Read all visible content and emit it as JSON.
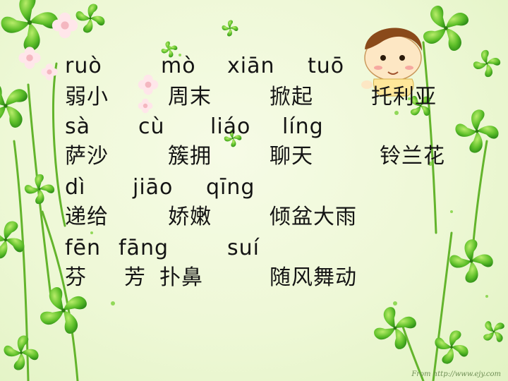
{
  "rows": [
    {
      "type": "pinyin",
      "items": [
        "ruò",
        "mò",
        "xiān",
        "tuō"
      ]
    },
    {
      "type": "hanzi",
      "items": [
        "弱小",
        "周末",
        "掀起",
        "托利亚"
      ]
    },
    {
      "type": "pinyin",
      "items": [
        "sà",
        "cù",
        "liáo",
        "líng"
      ]
    },
    {
      "type": "hanzi",
      "items": [
        "萨沙",
        "簇拥",
        "聊天",
        "铃兰花"
      ]
    },
    {
      "type": "pinyin",
      "items": [
        "dì",
        "jiāo",
        "qīng"
      ]
    },
    {
      "type": "hanzi",
      "items": [
        "递给",
        "娇嫩",
        "倾盆大雨"
      ]
    },
    {
      "type": "pinyin",
      "items": [
        "fēn",
        "fāng",
        "suí"
      ]
    },
    {
      "type": "hanzi",
      "items": [
        "芬",
        "芳",
        "扑鼻",
        "随风舞动"
      ]
    }
  ],
  "watermark": "From http://www.ejy.com"
}
